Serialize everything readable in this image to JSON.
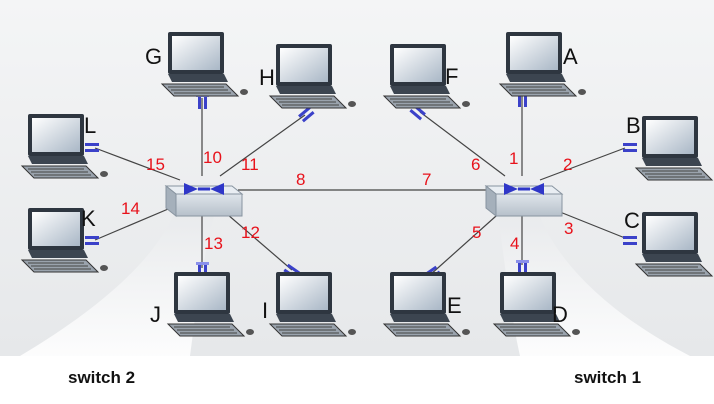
{
  "switches": [
    {
      "id": "sw2",
      "caption": "switch 2"
    },
    {
      "id": "sw1",
      "caption": "switch 1"
    }
  ],
  "hosts": [
    {
      "id": "A",
      "label": "A"
    },
    {
      "id": "B",
      "label": "B"
    },
    {
      "id": "C",
      "label": "C"
    },
    {
      "id": "D",
      "label": "D"
    },
    {
      "id": "E",
      "label": "E"
    },
    {
      "id": "F",
      "label": "F"
    },
    {
      "id": "G",
      "label": "G"
    },
    {
      "id": "H",
      "label": "H"
    },
    {
      "id": "I",
      "label": "I"
    },
    {
      "id": "J",
      "label": "J"
    },
    {
      "id": "K",
      "label": "K"
    },
    {
      "id": "L",
      "label": "L"
    }
  ],
  "ports": [
    "1",
    "2",
    "3",
    "4",
    "5",
    "6",
    "7",
    "8",
    "10",
    "11",
    "12",
    "13",
    "14",
    "15"
  ],
  "colors": {
    "port_text": "#e8121b",
    "connector": "#3b41c9",
    "switch_body": "#c9d1da",
    "switch_arrows": "#2f37c8"
  }
}
